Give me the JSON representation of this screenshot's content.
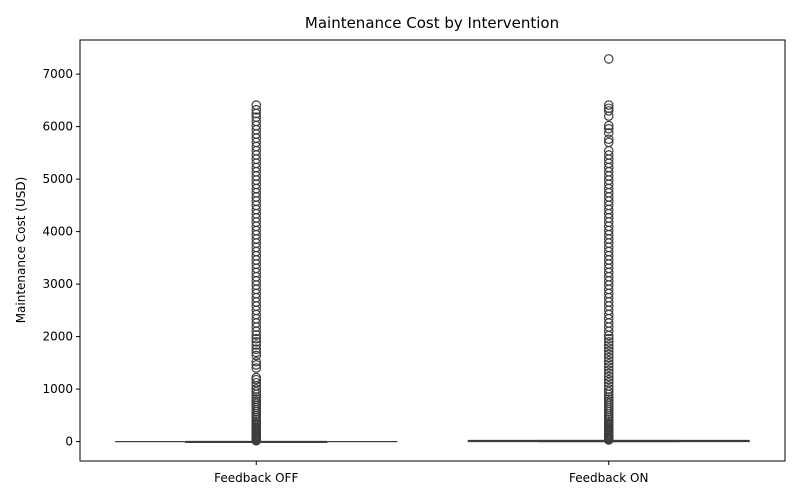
{
  "chart_data": {
    "type": "box",
    "title": "Maintenance Cost by Intervention",
    "xlabel": "",
    "ylabel": "Maintenance Cost (USD)",
    "categories": [
      "Feedback OFF",
      "Feedback ON"
    ],
    "ylim": [
      -370,
      7650
    ],
    "yticks": [
      0,
      1000,
      2000,
      3000,
      4000,
      5000,
      6000,
      7000
    ],
    "grid": false,
    "legend": "none",
    "box_color": "#3d3d3d",
    "boxes": [
      {
        "category": "Feedback OFF",
        "whisker_low": 0,
        "q1": 0,
        "median": 0,
        "q3": 0,
        "whisker_high": 0,
        "outliers": [
          15,
          30,
          45,
          60,
          80,
          100,
          120,
          140,
          160,
          185,
          210,
          235,
          260,
          290,
          320,
          350,
          385,
          420,
          455,
          490,
          530,
          570,
          610,
          650,
          690,
          730,
          770,
          810,
          850,
          900,
          950,
          1000,
          1060,
          1120,
          1180,
          1220,
          1400,
          1460,
          1520,
          1640,
          1700,
          1760,
          1840,
          1900,
          1960,
          2030,
          2100,
          2180,
          2260,
          2340,
          2420,
          2500,
          2580,
          2660,
          2740,
          2820,
          2900,
          2980,
          3060,
          3140,
          3220,
          3300,
          3380,
          3460,
          3540,
          3620,
          3700,
          3780,
          3860,
          3940,
          4020,
          4100,
          4180,
          4260,
          4340,
          4420,
          4500,
          4580,
          4660,
          4740,
          4820,
          4900,
          4980,
          5060,
          5140,
          5220,
          5300,
          5380,
          5460,
          5540,
          5620,
          5700,
          5780,
          5860,
          5940,
          6020,
          6100,
          6180,
          6250,
          6320,
          6410
        ]
      },
      {
        "category": "Feedback ON",
        "whisker_low": 0,
        "q1": 0,
        "median": 10,
        "q3": 20,
        "whisker_high": 20,
        "outliers": [
          30,
          45,
          60,
          80,
          100,
          120,
          140,
          160,
          185,
          210,
          235,
          260,
          290,
          320,
          350,
          385,
          420,
          455,
          490,
          530,
          570,
          610,
          650,
          690,
          730,
          770,
          810,
          850,
          900,
          950,
          1000,
          1060,
          1120,
          1180,
          1240,
          1300,
          1360,
          1420,
          1480,
          1540,
          1600,
          1660,
          1720,
          1780,
          1840,
          1900,
          1960,
          2020,
          2100,
          2180,
          2260,
          2340,
          2420,
          2500,
          2580,
          2660,
          2740,
          2820,
          2900,
          2980,
          3060,
          3140,
          3220,
          3300,
          3380,
          3460,
          3540,
          3620,
          3700,
          3780,
          3860,
          3940,
          4020,
          4100,
          4180,
          4260,
          4340,
          4420,
          4500,
          4580,
          4660,
          4740,
          4820,
          4900,
          4980,
          5060,
          5140,
          5220,
          5300,
          5380,
          5460,
          5540,
          5700,
          5760,
          5880,
          5960,
          6020,
          6200,
          6300,
          6350,
          6410,
          7290
        ]
      }
    ]
  }
}
